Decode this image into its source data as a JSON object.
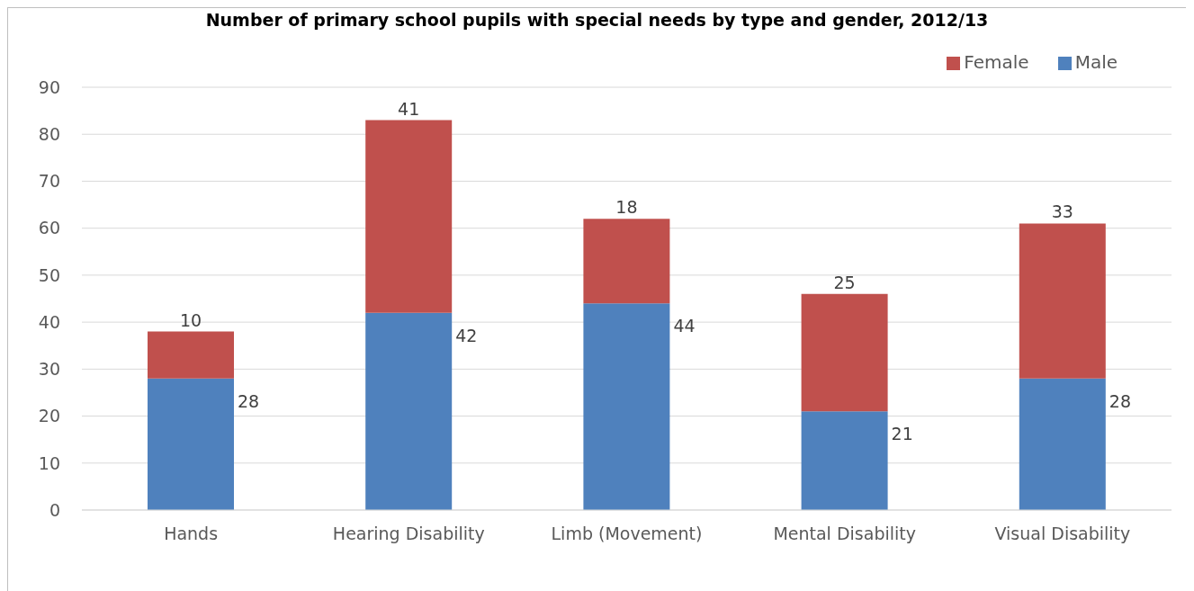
{
  "chart_data": {
    "type": "bar",
    "title": "Number of primary school pupils with special needs by type and gender, 2012/13",
    "categories": [
      "Hands",
      "Hearing Disability",
      "Limb (Movement)",
      "Mental Disability",
      "Visual Disability"
    ],
    "series": [
      {
        "name": "Male",
        "color": "#4f81bd",
        "values": [
          28,
          42,
          44,
          21,
          28
        ]
      },
      {
        "name": "Female",
        "color": "#c0504d",
        "values": [
          10,
          41,
          18,
          25,
          33
        ]
      }
    ],
    "stacked": true,
    "ylim": [
      0,
      90
    ],
    "yticks": [
      0,
      10,
      20,
      30,
      40,
      50,
      60,
      70,
      80,
      90
    ],
    "grid": "y",
    "legend": "top right",
    "data_labels": true
  }
}
